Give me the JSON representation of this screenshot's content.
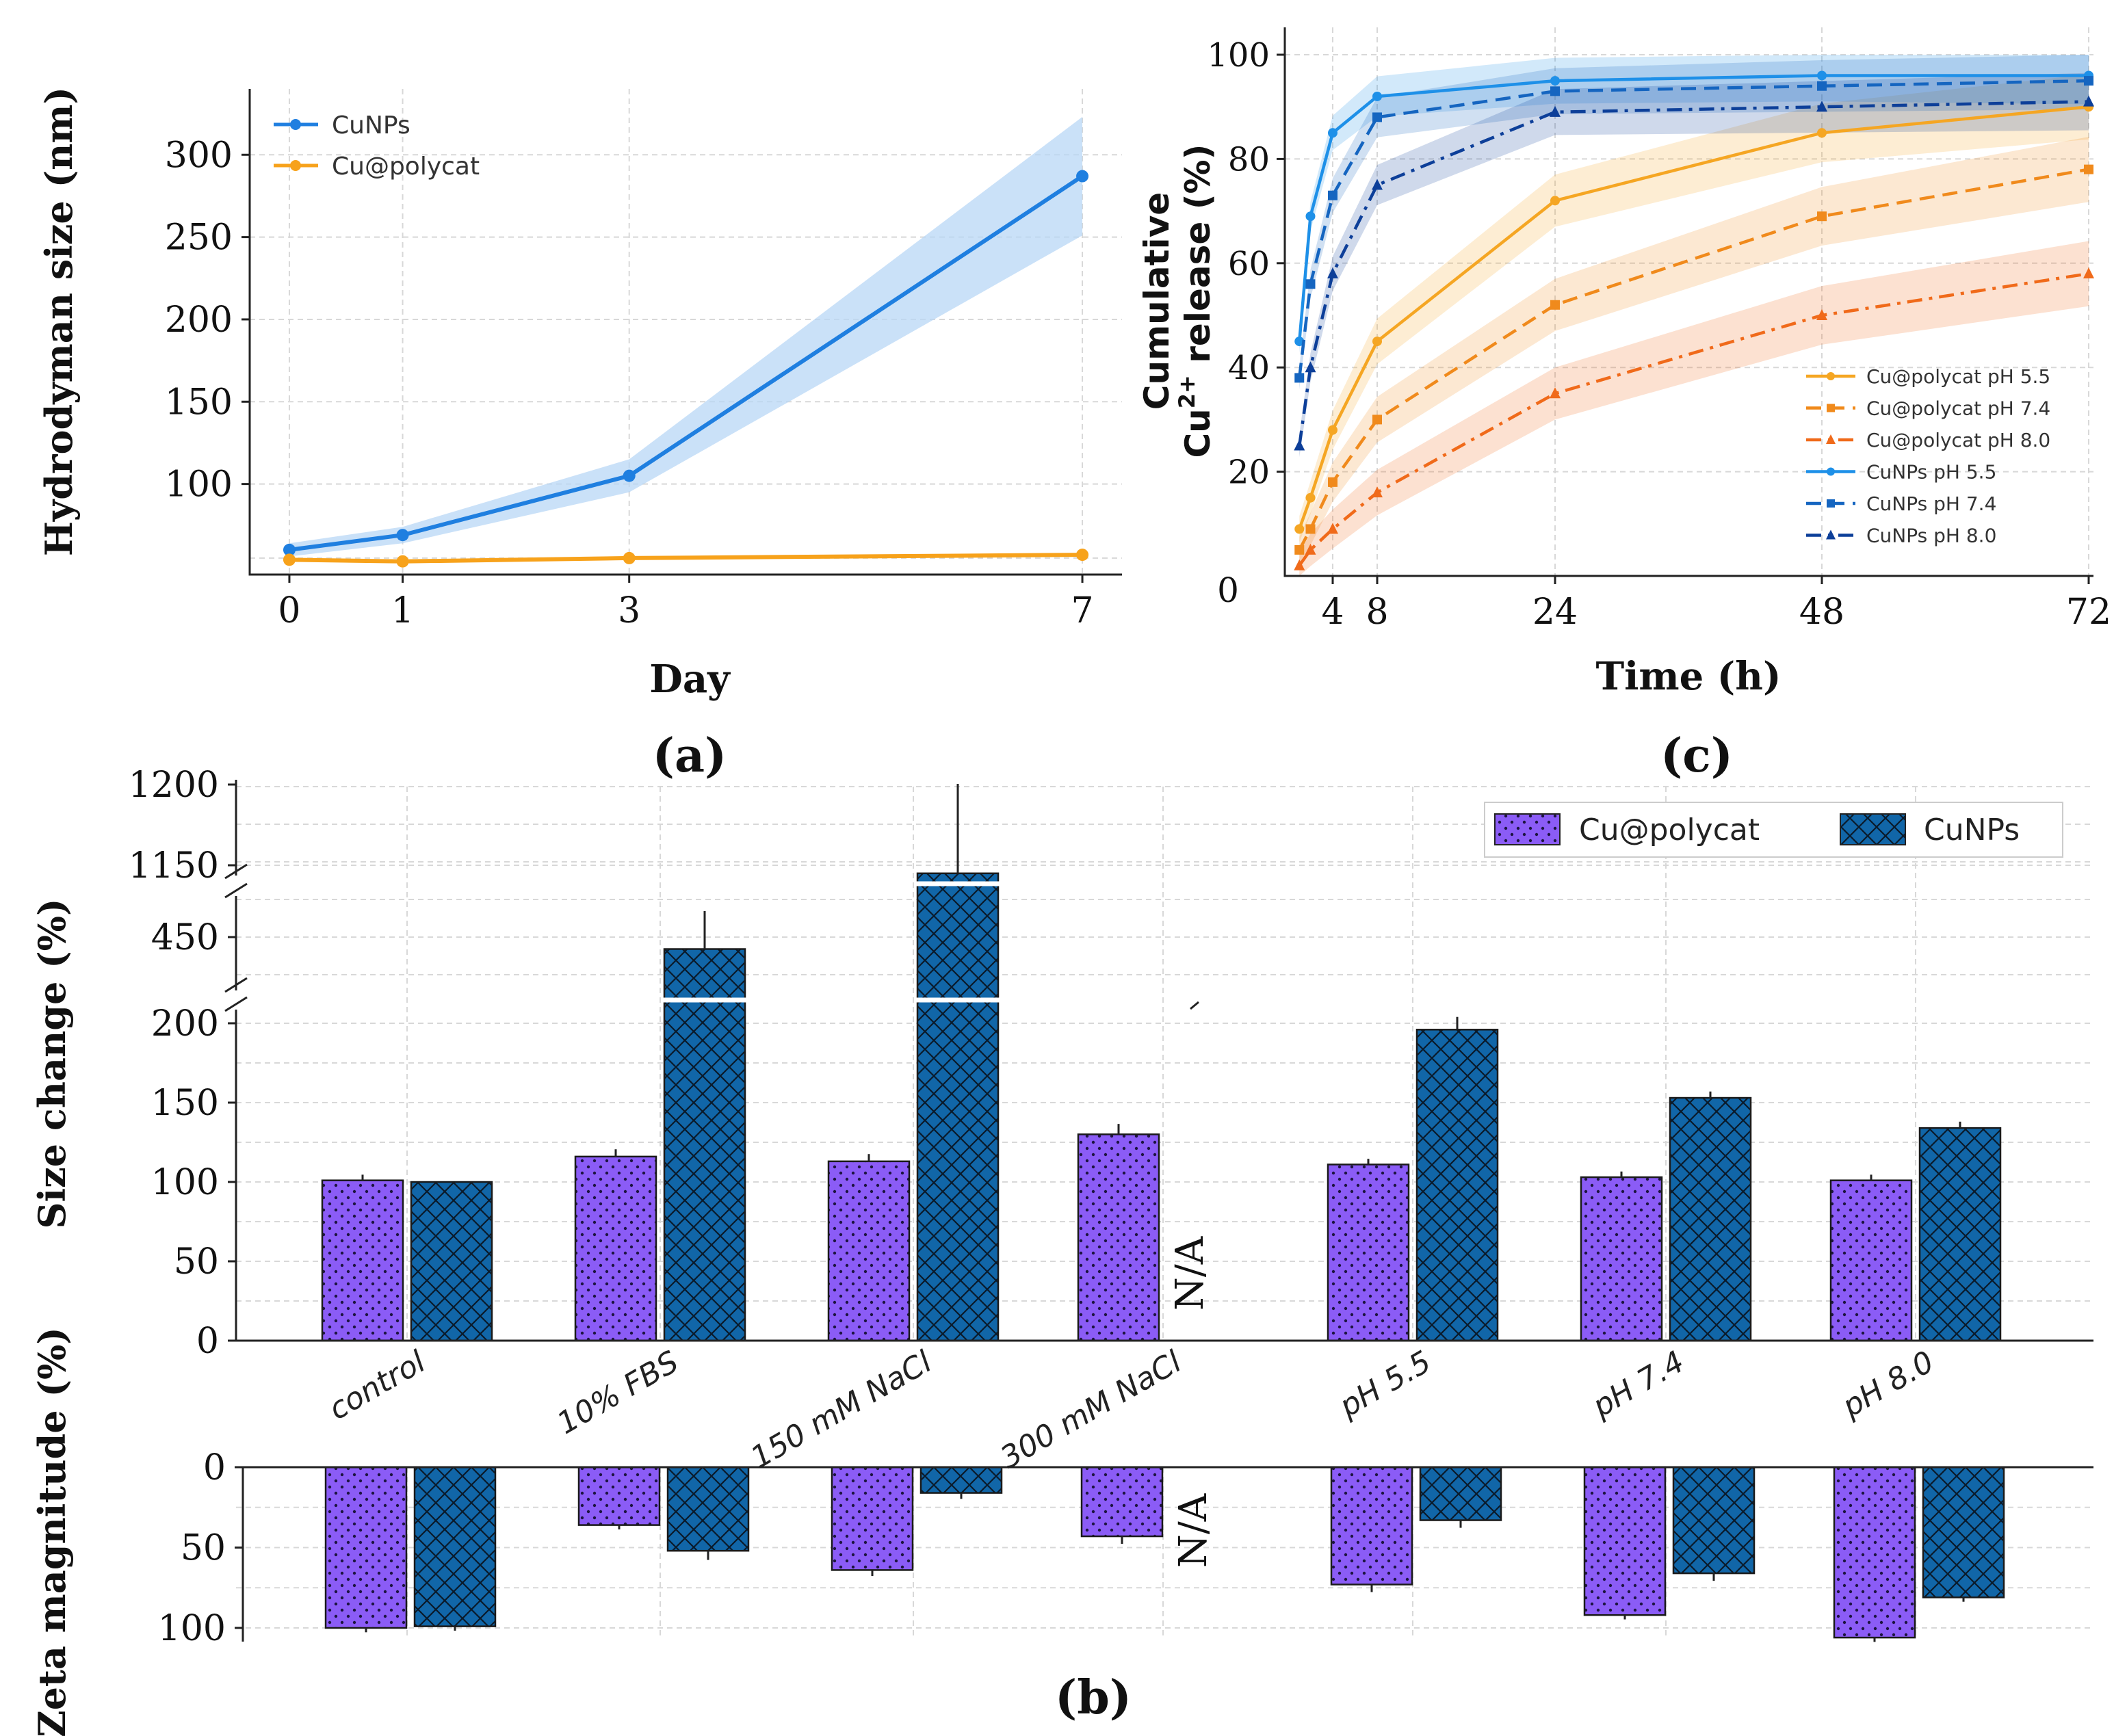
{
  "panel_labels": {
    "a": "(a)",
    "b": "(b)",
    "c": "(c)"
  },
  "colors": {
    "cunps_a": "#1f7fe0",
    "cunps_a_band": "#b8d7f5",
    "cupoly_a": "#f7a21b",
    "cunps_55": "#1e90e8",
    "cunps_74": "#1565c0",
    "cunps_80": "#0d3f99",
    "cupoly_55": "#f5a623",
    "cupoly_74": "#f08a1c",
    "cupoly_80": "#f06a1a",
    "bar_purple": "#8b5cf6",
    "bar_blue": "#1166a8"
  },
  "chart_data": [
    {
      "id": "a",
      "type": "line",
      "title": "",
      "xlabel": "Day",
      "ylabel": "Hydrodyman size (nm)",
      "x": [
        0,
        1,
        3,
        7
      ],
      "xticks": [
        "0",
        "1",
        "3",
        "7"
      ],
      "xlim": [
        -0.35,
        7.35
      ],
      "ylim": [
        45,
        340
      ],
      "yticks": [
        100,
        150,
        200,
        250,
        300
      ],
      "legend_position": "top-left",
      "series": [
        {
          "name": "CuNPs",
          "values": [
            60,
            69,
            105,
            287
          ],
          "band": [
            4,
            5,
            10,
            36
          ]
        },
        {
          "name": "Cu@polycat",
          "values": [
            54,
            53,
            55,
            57
          ],
          "band": [
            0,
            0,
            0,
            0
          ]
        }
      ]
    },
    {
      "id": "c",
      "type": "line",
      "title": "",
      "xlabel": "Time (h)",
      "ylabel_line1": "Cumulative",
      "ylabel_line2": "Cu",
      "ylabel_sup": "2+",
      "ylabel_line2_rest": " release (%)",
      "xticks": [
        4,
        8,
        24,
        48,
        72
      ],
      "yticks": [
        20,
        40,
        60,
        80,
        100
      ],
      "y_zero_label": "0",
      "xlim": [
        0,
        72
      ],
      "ylim": [
        0,
        104
      ],
      "legend_position": "lower-right",
      "x": [
        1,
        2,
        4,
        8,
        24,
        48,
        72
      ],
      "series": [
        {
          "name": "Cu@polycat pH 5.5",
          "values": [
            9,
            15,
            28,
            45,
            72,
            85,
            90
          ],
          "marker": "circle",
          "dash": "solid"
        },
        {
          "name": "Cu@polycat pH 7.4",
          "values": [
            5,
            9,
            18,
            30,
            52,
            69,
            78
          ],
          "marker": "square",
          "dash": "dashed"
        },
        {
          "name": "Cu@polycat pH 8.0",
          "values": [
            2,
            5,
            9,
            16,
            35,
            50,
            58
          ],
          "marker": "triangle",
          "dash": "dashdot"
        },
        {
          "name": "CuNPs pH 5.5",
          "values": [
            45,
            69,
            85,
            92,
            95,
            96,
            96
          ],
          "marker": "circle",
          "dash": "solid"
        },
        {
          "name": "CuNPs pH 7.4",
          "values": [
            38,
            56,
            73,
            88,
            93,
            94,
            95
          ],
          "marker": "square",
          "dash": "dashed"
        },
        {
          "name": "CuNPs pH 8.0",
          "values": [
            25,
            40,
            58,
            75,
            89,
            90,
            91
          ],
          "marker": "triangle",
          "dash": "dashdot"
        }
      ]
    },
    {
      "id": "b",
      "type": "bar",
      "title": "",
      "ylabel_top": "Size change (%)",
      "ylabel_bottom": "Zeta magnitude (%)",
      "categories": [
        "control",
        "10% FBS",
        "150 mM NaCl",
        "300 mM NaCl",
        "pH 5.5",
        "pH 7.4",
        "pH 8.0"
      ],
      "yticks_top": [
        "0",
        "50",
        "100",
        "150",
        "200",
        "450",
        "1150",
        "1200"
      ],
      "yticks_zeta": [
        "0",
        "50",
        "100"
      ],
      "na_label": "N/A",
      "legend_position": "top-right",
      "series": [
        {
          "name": "Cu@polycat",
          "size": [
            101,
            116,
            113,
            130,
            111,
            103,
            101
          ],
          "size_err": [
            1,
            2,
            2,
            4,
            1,
            1,
            1
          ],
          "zeta": [
            100,
            36,
            64,
            43,
            73,
            92,
            106
          ],
          "zeta_err": [
            1,
            1,
            2,
            3,
            3,
            1,
            1
          ]
        },
        {
          "name": "CuNPs",
          "size": [
            100,
            400,
            1145,
            null,
            196,
            153,
            134
          ],
          "size_err": [
            0,
            70,
            60,
            null,
            8,
            4,
            4
          ],
          "zeta": [
            99,
            52,
            16,
            null,
            33,
            66,
            81
          ],
          "zeta_err": [
            1,
            4,
            2,
            null,
            3,
            3,
            1
          ]
        }
      ]
    }
  ]
}
